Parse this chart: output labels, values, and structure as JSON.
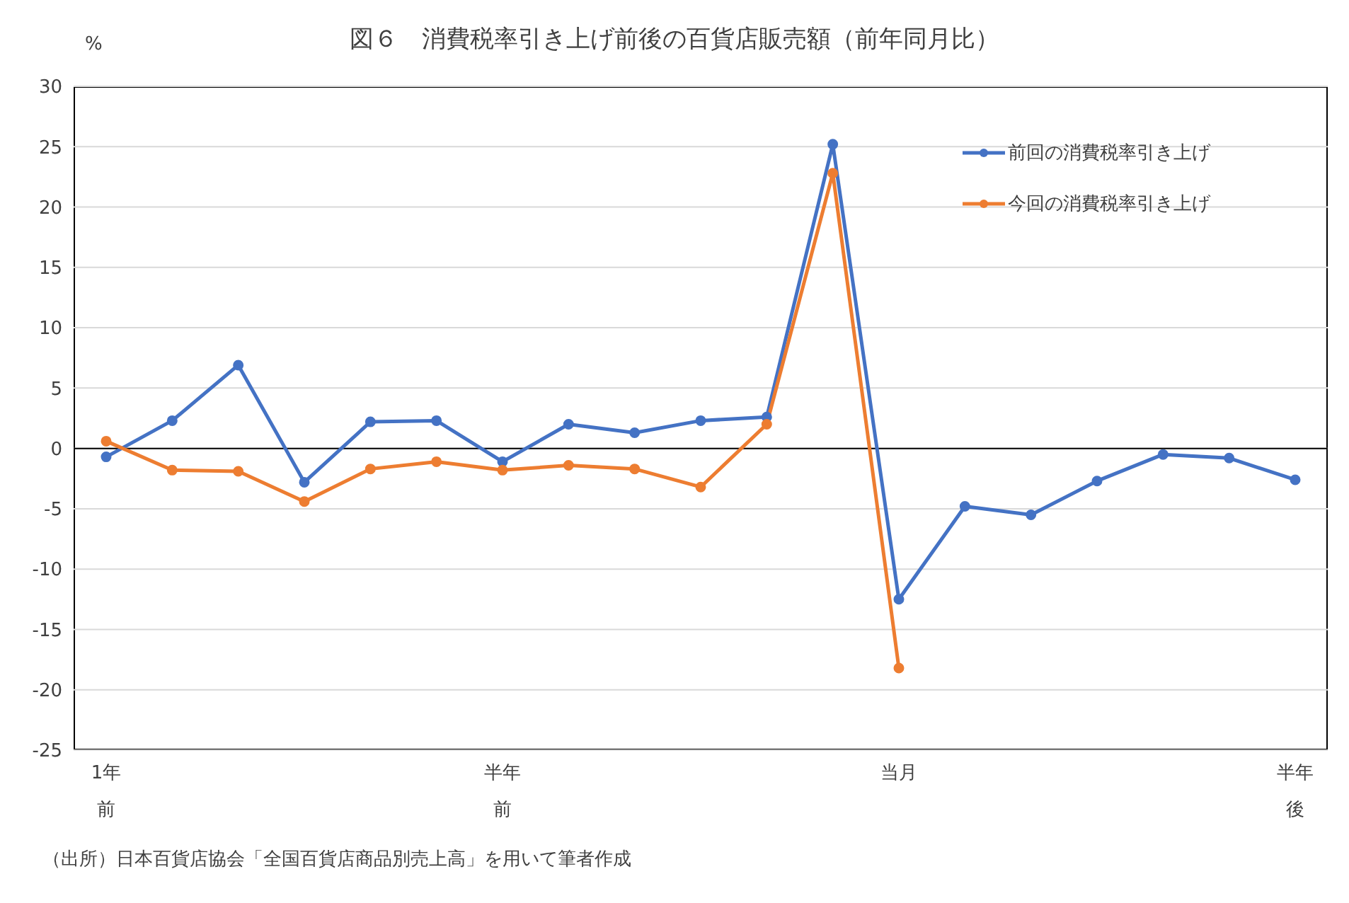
{
  "chart_data": {
    "type": "line",
    "title": "図６　消費税率引き上げ前後の百貨店販売額（前年同月比）",
    "ylabel": "%",
    "categories": [
      "1年前",
      null,
      null,
      null,
      null,
      null,
      "半年前",
      null,
      null,
      null,
      null,
      null,
      "当月",
      null,
      null,
      null,
      null,
      null,
      "半年後"
    ],
    "series": [
      {
        "name": "前回の消費税率引き上げ",
        "color": "#4472c4",
        "values": [
          -0.7,
          2.3,
          6.9,
          -2.8,
          2.2,
          2.3,
          -1.1,
          2.0,
          1.3,
          2.3,
          2.6,
          25.2,
          -12.5,
          -4.8,
          -5.5,
          -2.7,
          -0.5,
          -0.8,
          -2.6
        ]
      },
      {
        "name": "今回の消費税率引き上げ",
        "color": "#ed7d31",
        "values": [
          0.6,
          -1.8,
          -1.9,
          -4.4,
          -1.7,
          -1.1,
          -1.8,
          -1.4,
          -1.7,
          -3.2,
          2.0,
          22.8,
          -18.2,
          null,
          null,
          null,
          null,
          null,
          null
        ]
      }
    ],
    "ylim": [
      -25,
      30
    ],
    "yticks": [
      -25,
      -20,
      -15,
      -10,
      -5,
      0,
      5,
      10,
      15,
      20,
      25,
      30
    ],
    "grid": "y",
    "legend": "top right",
    "marker": "circle",
    "line_style": "solid",
    "ref_lines": [
      {
        "axis": "y",
        "value": 0,
        "color": "#000000"
      }
    ],
    "annotations": [
      "（出所）日本百貨店協会「全国百貨店商品別売上高」を用いて筆者作成"
    ]
  }
}
